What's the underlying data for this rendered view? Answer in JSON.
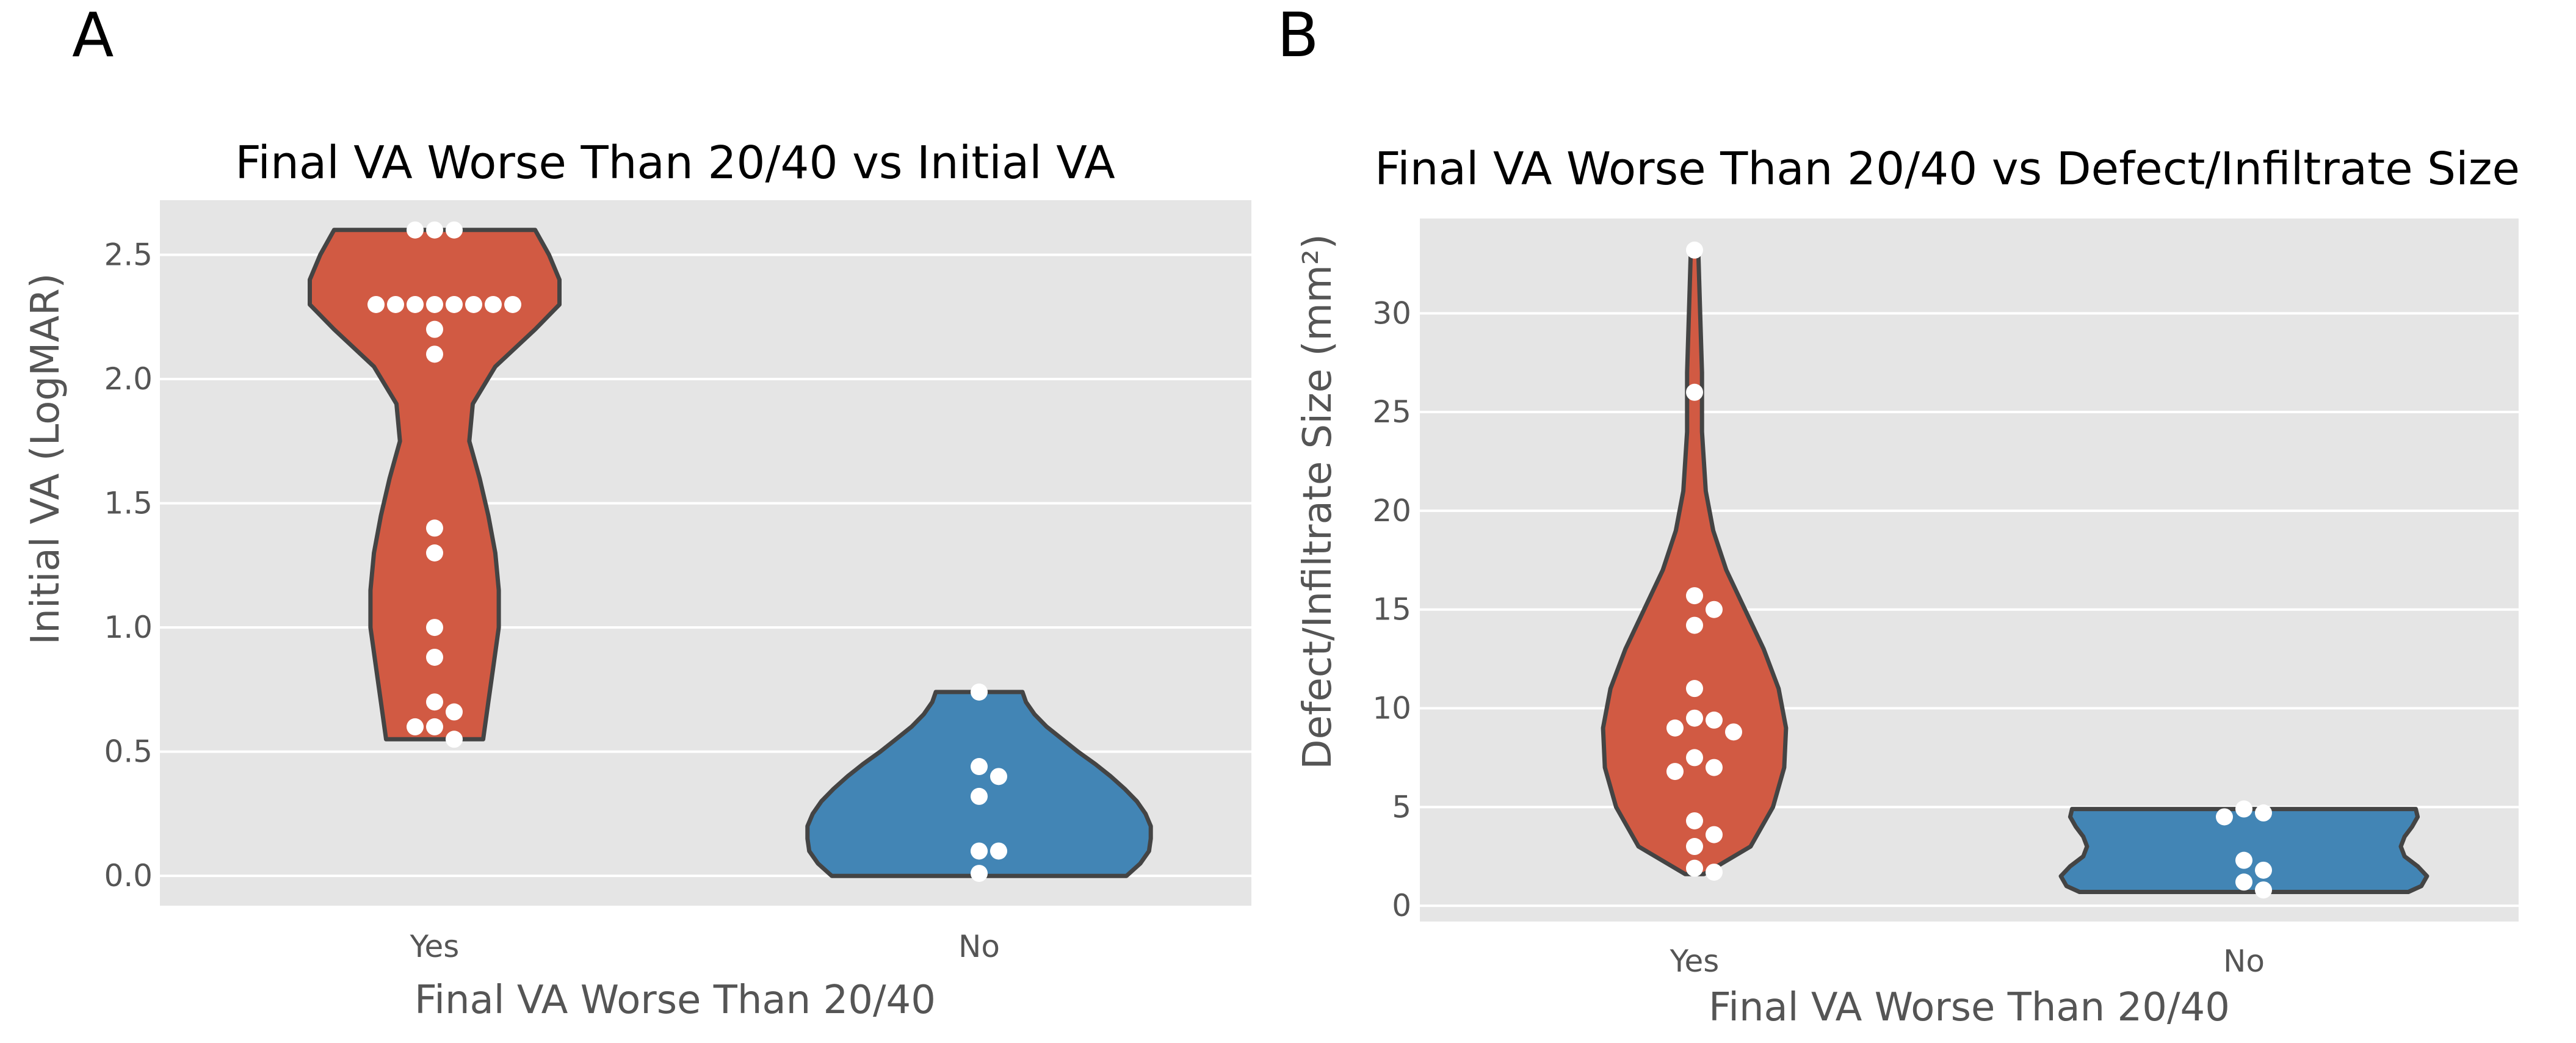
{
  "colors": {
    "panel_bg": "#e5e5e5",
    "grid": "#ffffff",
    "yes": "#d15a43",
    "no": "#4285b5",
    "outline": "#444444",
    "dot": "#ffffff"
  },
  "panels": [
    {
      "letter": "A",
      "chart_data": {
        "type": "violin",
        "title": "Final VA Worse Than 20/40 vs Initial VA",
        "xlabel": "Final VA Worse Than 20/40",
        "ylabel": "Initial VA  (LogMAR)",
        "categories": [
          "Yes",
          "No"
        ],
        "ylim": [
          -0.12,
          2.72
        ],
        "yticks": [
          0.0,
          0.5,
          1.0,
          1.5,
          2.0,
          2.5
        ],
        "ytick_labels": [
          "0.0",
          "0.5",
          "1.0",
          "1.5",
          "2.0",
          "2.5"
        ],
        "series": [
          {
            "name": "Yes",
            "values": [
              2.6,
              2.6,
              2.6,
              2.3,
              2.3,
              2.3,
              2.3,
              2.3,
              2.3,
              2.3,
              2.3,
              2.2,
              2.1,
              1.4,
              1.3,
              1.0,
              0.88,
              0.7,
              0.66,
              0.6,
              0.6,
              0.55
            ],
            "density": [
              [
                0.55,
                0.28
              ],
              [
                0.7,
                0.31
              ],
              [
                0.85,
                0.34
              ],
              [
                1.0,
                0.37
              ],
              [
                1.15,
                0.37
              ],
              [
                1.3,
                0.35
              ],
              [
                1.45,
                0.31
              ],
              [
                1.6,
                0.26
              ],
              [
                1.75,
                0.2
              ],
              [
                1.9,
                0.22
              ],
              [
                2.05,
                0.35
              ],
              [
                2.2,
                0.58
              ],
              [
                2.3,
                0.72
              ],
              [
                2.4,
                0.72
              ],
              [
                2.5,
                0.66
              ],
              [
                2.6,
                0.58
              ]
            ]
          },
          {
            "name": "No",
            "values": [
              0.74,
              0.44,
              0.4,
              0.32,
              0.1,
              0.1,
              0.01
            ],
            "density": [
              [
                0.0,
                0.85
              ],
              [
                0.05,
                0.93
              ],
              [
                0.1,
                0.98
              ],
              [
                0.15,
                0.99
              ],
              [
                0.2,
                0.99
              ],
              [
                0.25,
                0.96
              ],
              [
                0.3,
                0.91
              ],
              [
                0.35,
                0.84
              ],
              [
                0.4,
                0.76
              ],
              [
                0.45,
                0.67
              ],
              [
                0.5,
                0.57
              ],
              [
                0.55,
                0.48
              ],
              [
                0.6,
                0.39
              ],
              [
                0.65,
                0.32
              ],
              [
                0.7,
                0.27
              ],
              [
                0.74,
                0.25
              ]
            ]
          }
        ]
      }
    },
    {
      "letter": "B",
      "chart_data": {
        "type": "violin",
        "title": "Final VA Worse Than 20/40 vs Defect/Infiltrate Size",
        "xlabel": "Final VA Worse Than 20/40",
        "ylabel": "Defect/Infiltrate Size (mm²)",
        "categories": [
          "Yes",
          "No"
        ],
        "ylim": [
          -0.8,
          34.8
        ],
        "yticks": [
          0,
          5,
          10,
          15,
          20,
          25,
          30
        ],
        "ytick_labels": [
          "0",
          "5",
          "10",
          "15",
          "20",
          "25",
          "30"
        ],
        "series": [
          {
            "name": "Yes",
            "values": [
              33.2,
              26.0,
              15.7,
              15.0,
              14.2,
              11.0,
              9.5,
              9.4,
              9.0,
              8.8,
              7.5,
              7.0,
              6.8,
              4.3,
              3.6,
              3.0,
              1.9,
              1.7
            ],
            "density": [
              [
                1.6,
                0.05
              ],
              [
                3.0,
                0.3
              ],
              [
                5.0,
                0.42
              ],
              [
                7.0,
                0.48
              ],
              [
                9.0,
                0.49
              ],
              [
                11.0,
                0.45
              ],
              [
                13.0,
                0.37
              ],
              [
                15.0,
                0.27
              ],
              [
                17.0,
                0.17
              ],
              [
                19.0,
                0.1
              ],
              [
                21.0,
                0.06
              ],
              [
                24.0,
                0.04
              ],
              [
                27.0,
                0.04
              ],
              [
                30.0,
                0.03
              ],
              [
                33.2,
                0.02
              ]
            ]
          },
          {
            "name": "No",
            "values": [
              4.9,
              4.7,
              4.5,
              2.3,
              1.8,
              1.2,
              0.8
            ],
            "density": [
              [
                0.7,
                0.88
              ],
              [
                1.0,
                0.95
              ],
              [
                1.5,
                0.98
              ],
              [
                2.0,
                0.93
              ],
              [
                2.5,
                0.86
              ],
              [
                3.0,
                0.84
              ],
              [
                3.5,
                0.86
              ],
              [
                4.0,
                0.9
              ],
              [
                4.5,
                0.93
              ],
              [
                4.9,
                0.92
              ]
            ]
          }
        ]
      }
    }
  ]
}
